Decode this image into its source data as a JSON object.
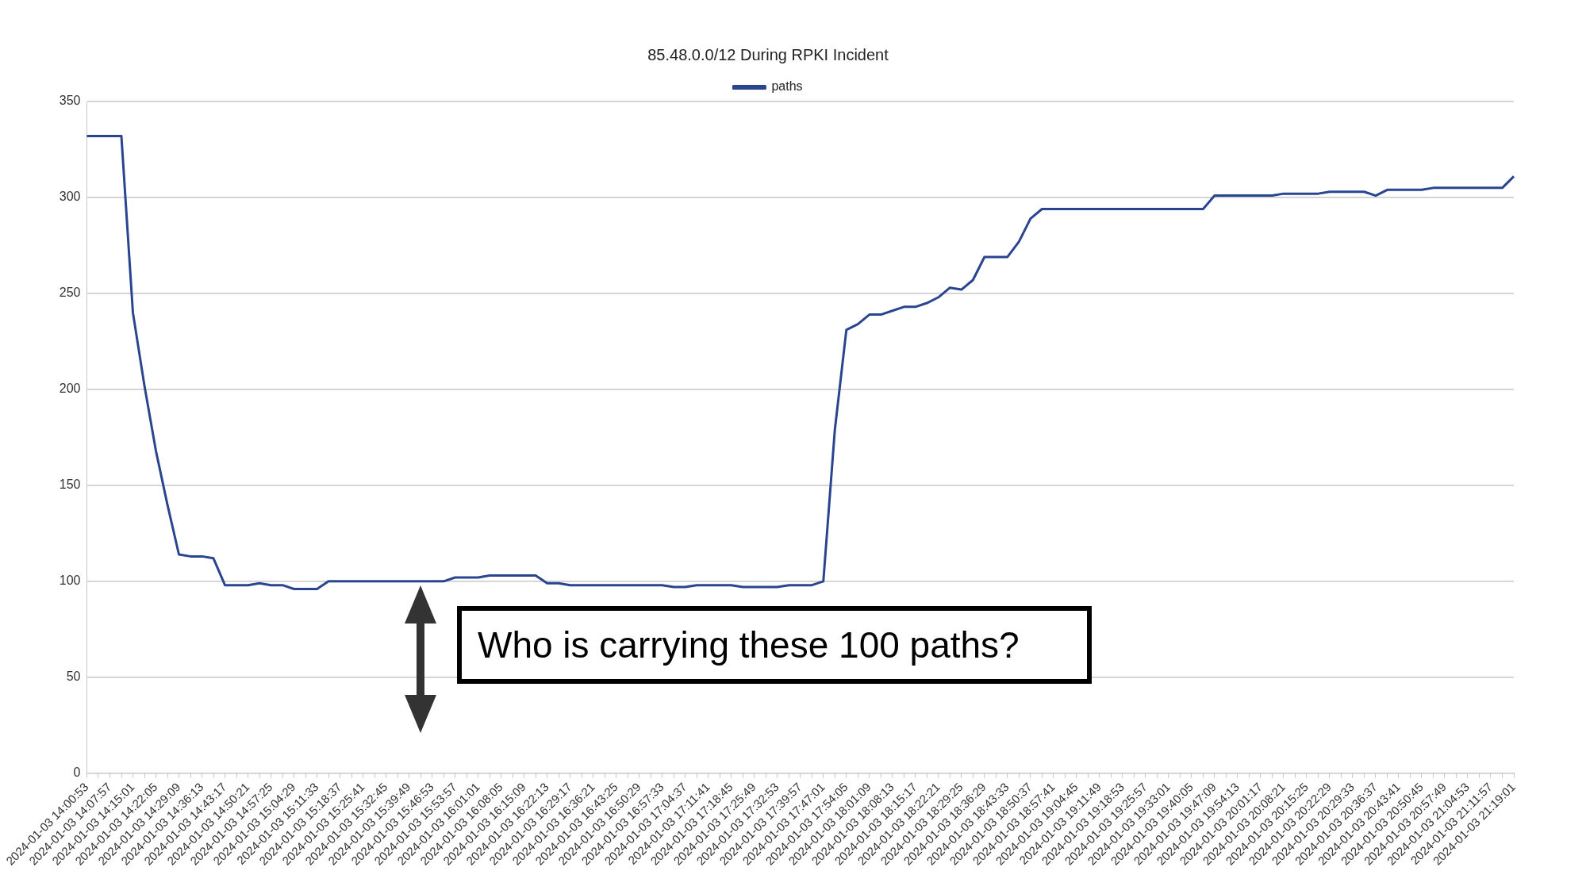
{
  "chart_data": {
    "type": "line",
    "title": "85.48.0.0/12 During RPKI Incident",
    "categories": [
      "2024-01-03 14:00:53",
      null,
      "2024-01-03 14:07:57",
      null,
      "2024-01-03 14:15:01",
      null,
      "2024-01-03 14:22:05",
      null,
      "2024-01-03 14:29:09",
      null,
      "2024-01-03 14:36:13",
      null,
      "2024-01-03 14:43:17",
      null,
      "2024-01-03 14:50:21",
      null,
      "2024-01-03 14:57:25",
      null,
      "2024-01-03 15:04:29",
      null,
      "2024-01-03 15:11:33",
      null,
      "2024-01-03 15:18:37",
      null,
      "2024-01-03 15:25:41",
      null,
      "2024-01-03 15:32:45",
      null,
      "2024-01-03 15:39:49",
      null,
      "2024-01-03 15:46:53",
      null,
      "2024-01-03 15:53:57",
      null,
      "2024-01-03 16:01:01",
      null,
      "2024-01-03 16:08:05",
      null,
      "2024-01-03 16:15:09",
      null,
      "2024-01-03 16:22:13",
      null,
      "2024-01-03 16:29:17",
      null,
      "2024-01-03 16:36:21",
      null,
      "2024-01-03 16:43:25",
      null,
      "2024-01-03 16:50:29",
      null,
      "2024-01-03 16:57:33",
      null,
      "2024-01-03 17:04:37",
      null,
      "2024-01-03 17:11:41",
      null,
      "2024-01-03 17:18:45",
      null,
      "2024-01-03 17:25:49",
      null,
      "2024-01-03 17:32:53",
      null,
      "2024-01-03 17:39:57",
      null,
      "2024-01-03 17:47:01",
      null,
      "2024-01-03 17:54:05",
      null,
      "2024-01-03 18:01:09",
      null,
      "2024-01-03 18:08:13",
      null,
      "2024-01-03 18:15:17",
      null,
      "2024-01-03 18:22:21",
      null,
      "2024-01-03 18:29:25",
      null,
      "2024-01-03 18:36:29",
      null,
      "2024-01-03 18:43:33",
      null,
      "2024-01-03 18:50:37",
      null,
      "2024-01-03 18:57:41",
      null,
      "2024-01-03 19:04:45",
      null,
      "2024-01-03 19:11:49",
      null,
      "2024-01-03 19:18:53",
      null,
      "2024-01-03 19:25:57",
      null,
      "2024-01-03 19:33:01",
      null,
      "2024-01-03 19:40:05",
      null,
      "2024-01-03 19:47:09",
      null,
      "2024-01-03 19:54:13",
      null,
      "2024-01-03 20:01:17",
      null,
      "2024-01-03 20:08:21",
      null,
      "2024-01-03 20:15:25",
      null,
      "2024-01-03 20:22:29",
      null,
      "2024-01-03 20:29:33",
      null,
      "2024-01-03 20:36:37",
      null,
      "2024-01-03 20:43:41",
      null,
      "2024-01-03 20:50:45",
      null,
      "2024-01-03 20:57:49",
      null,
      "2024-01-03 21:04:53",
      null,
      "2024-01-03 21:11:57",
      null,
      "2024-01-03 21:19:01"
    ],
    "series": [
      {
        "name": "paths",
        "color": "#2a4590",
        "values": [
          332,
          332,
          332,
          332,
          240,
          202,
          168,
          140,
          114,
          113,
          113,
          112,
          98,
          98,
          98,
          99,
          98,
          98,
          96,
          96,
          96,
          100,
          100,
          100,
          100,
          100,
          100,
          100,
          100,
          100,
          100,
          100,
          102,
          102,
          102,
          103,
          103,
          103,
          103,
          103,
          99,
          99,
          98,
          98,
          98,
          98,
          98,
          98,
          98,
          98,
          98,
          97,
          97,
          98,
          98,
          98,
          98,
          97,
          97,
          97,
          97,
          98,
          98,
          98,
          100,
          179,
          231,
          234,
          239,
          239,
          241,
          243,
          243,
          245,
          248,
          253,
          252,
          257,
          269,
          269,
          269,
          277,
          289,
          294,
          294,
          294,
          294,
          294,
          294,
          294,
          294,
          294,
          294,
          294,
          294,
          294,
          294,
          294,
          301,
          301,
          301,
          301,
          301,
          301,
          302,
          302,
          302,
          302,
          303,
          303,
          303,
          303,
          301,
          304,
          304,
          304,
          304,
          305,
          305,
          305,
          305,
          305,
          305,
          305,
          311
        ]
      }
    ],
    "ylim": [
      0,
      350
    ],
    "yticks": [
      0,
      50,
      100,
      150,
      200,
      250,
      300,
      350
    ],
    "grid": "y",
    "legend": "top",
    "marker": "none",
    "line_style": "solid",
    "annotations": [
      "Who is carrying these 100 paths?"
    ]
  }
}
